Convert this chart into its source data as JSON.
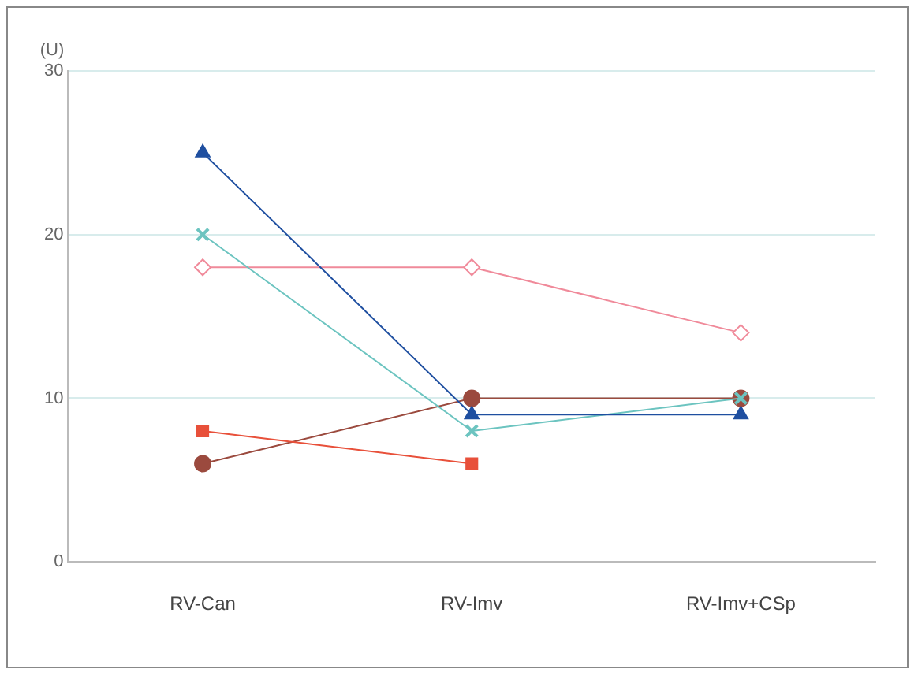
{
  "chart_data": {
    "type": "line",
    "ylabel": "(U)",
    "categories": [
      "RV-Can",
      "RV-Imv",
      "RV-Imv+CSp"
    ],
    "series": [
      {
        "color": "#1f4fa0",
        "marker": "triangle",
        "values": [
          25,
          9,
          9
        ]
      },
      {
        "color": "#6cc4c0",
        "marker": "cross",
        "values": [
          20,
          8,
          10
        ]
      },
      {
        "color": "#f08a9a",
        "marker": "diamond",
        "values": [
          18,
          18,
          14
        ]
      },
      {
        "color": "#e8503a",
        "marker": "square",
        "values": [
          8,
          6,
          null
        ]
      },
      {
        "color": "#9b4a3e",
        "marker": "circle",
        "values": [
          6,
          10,
          10
        ]
      }
    ],
    "ylim": [
      0,
      30
    ],
    "yticks": [
      0,
      10,
      20,
      30
    ],
    "grid": "y",
    "legend": false,
    "line_style": "solid"
  }
}
